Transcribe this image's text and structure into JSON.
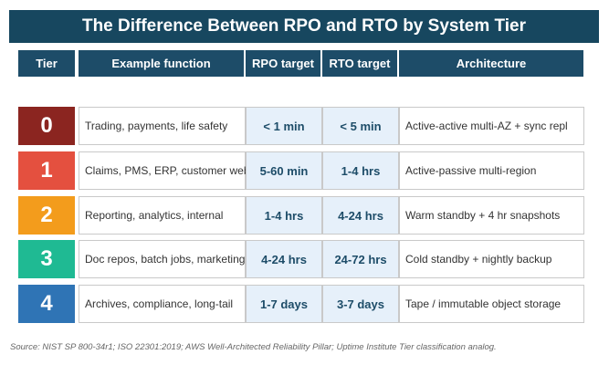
{
  "title": "The Difference Between RPO and RTO by System Tier",
  "headers": {
    "tier": "Tier",
    "function": "Example function",
    "rpo": "RPO target",
    "rto": "RTO target",
    "architecture": "Architecture"
  },
  "rows": [
    {
      "tier": "0",
      "color": "#8b2520",
      "function": "Trading, payments, life safety",
      "rpo": "< 1 min",
      "rto": "< 5 min",
      "architecture": "Active-active multi-AZ + sync repl"
    },
    {
      "tier": "1",
      "color": "#e4503f",
      "function": "Claims, PMS, ERP, customer web",
      "rpo": "5-60 min",
      "rto": "1-4 hrs",
      "architecture": "Active-passive multi-region"
    },
    {
      "tier": "2",
      "color": "#f39c1c",
      "function": "Reporting, analytics, internal",
      "rpo": "1-4 hrs",
      "rto": "4-24 hrs",
      "architecture": "Warm standby + 4 hr snapshots"
    },
    {
      "tier": "3",
      "color": "#1fba93",
      "function": "Doc repos, batch jobs, marketing",
      "rpo": "4-24 hrs",
      "rto": "24-72 hrs",
      "architecture": "Cold standby + nightly backup"
    },
    {
      "tier": "4",
      "color": "#2f74b5",
      "function": "Archives, compliance, long-tail",
      "rpo": "1-7 days",
      "rto": "3-7 days",
      "architecture": "Tape / immutable object storage"
    }
  ],
  "source": "Source: NIST SP 800-34r1; ISO 22301:2019; AWS Well-Architected Reliability Pillar; Uptime Institute Tier classification analog.",
  "colors": {
    "title_bg": "#17475f",
    "header_bg": "#1d4c68",
    "target_bg": "#e6f0fa"
  }
}
